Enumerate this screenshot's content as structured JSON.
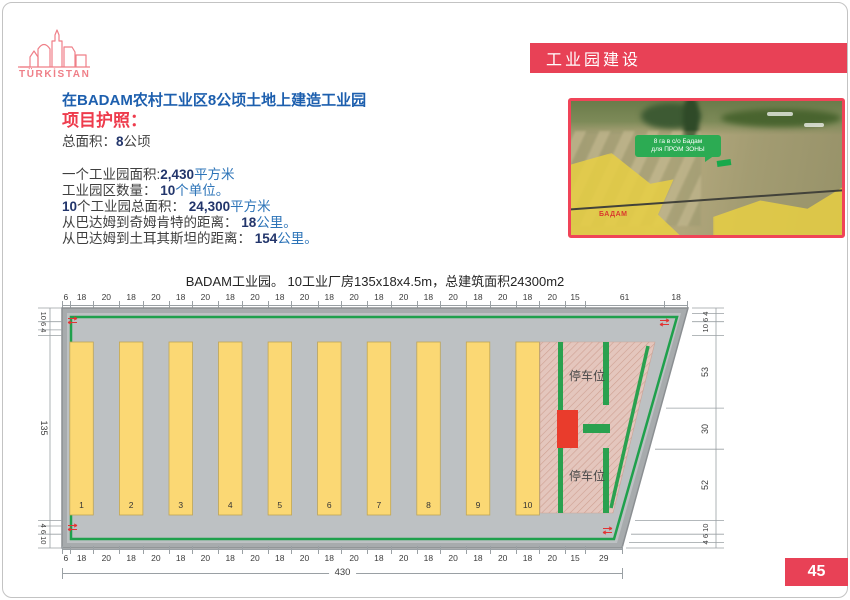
{
  "logo": {
    "brand": "TÜRKİSTAN"
  },
  "banner": {
    "title": "工业园建设"
  },
  "intro": {
    "heading": "在BADAM农村工业区8公顷土地上建造工业园",
    "subheading": "项目护照：",
    "lines": [
      [
        {
          "t": "总面积：",
          "s": "d"
        },
        {
          "t": "8",
          "s": "n"
        },
        {
          "t": "公顷",
          "s": "d"
        }
      ],
      [
        {
          "t": "一个工业园面积:",
          "s": "d"
        },
        {
          "t": "2,430",
          "s": "n"
        },
        {
          "t": "平方米",
          "s": "b"
        }
      ],
      [
        {
          "t": "工业园区数量： ",
          "s": "d"
        },
        {
          "t": "10",
          "s": "n"
        },
        {
          "t": "个单位。",
          "s": "b"
        }
      ],
      [
        {
          "t": "10",
          "s": "n"
        },
        {
          "t": "个工业园总面积： ",
          "s": "d"
        },
        {
          "t": "24,300",
          "s": "n"
        },
        {
          "t": "平方米",
          "s": "b"
        }
      ],
      [
        {
          "t": "从巴达姆到奇姆肯特的距离： ",
          "s": "d"
        },
        {
          "t": "18",
          "s": "n"
        },
        {
          "t": "公里。",
          "s": "b"
        }
      ],
      [
        {
          "t": "从巴达姆到土耳其斯坦的距离： ",
          "s": "d"
        },
        {
          "t": "154",
          "s": "n"
        },
        {
          "t": "公里。",
          "s": "b"
        }
      ]
    ]
  },
  "map": {
    "callout_line1": "8 га в с/о Бадам",
    "callout_line2": "для ПРОМ ЗОНЫ",
    "place": "БАДАМ"
  },
  "plan": {
    "title": "BADAM工业园。 10工业厂房135x18x4.5m，总建筑面积24300m2",
    "top_dims": [
      "6",
      "18",
      "20",
      "18",
      "20",
      "18",
      "20",
      "18",
      "20",
      "18",
      "20",
      "18",
      "20",
      "18",
      "20",
      "18",
      "20",
      "18",
      "20",
      "18",
      "20",
      "15",
      "61",
      "18"
    ],
    "bottom_dims": [
      "6",
      "18",
      "20",
      "18",
      "20",
      "18",
      "20",
      "18",
      "20",
      "18",
      "20",
      "18",
      "20",
      "18",
      "20",
      "18",
      "20",
      "18",
      "20",
      "18",
      "20",
      "15",
      "29"
    ],
    "bottom_total": "430",
    "left_dims": [
      "10 6 4",
      "135",
      "4 6 10"
    ],
    "right_dims": [
      "10 6 4",
      "53",
      "30",
      "52",
      "4 6 10"
    ],
    "buildings": [
      "1",
      "2",
      "3",
      "4",
      "5",
      "6",
      "7",
      "8",
      "9",
      "10"
    ],
    "parking_label": "停车位"
  },
  "page_number": "45",
  "colors": {
    "accent_red": "#e84156",
    "heading_blue": "#1d5fae",
    "fence_green": "#1fa04c",
    "building_yellow": "#fbd874",
    "parking_pink": "#e4c6bd"
  }
}
